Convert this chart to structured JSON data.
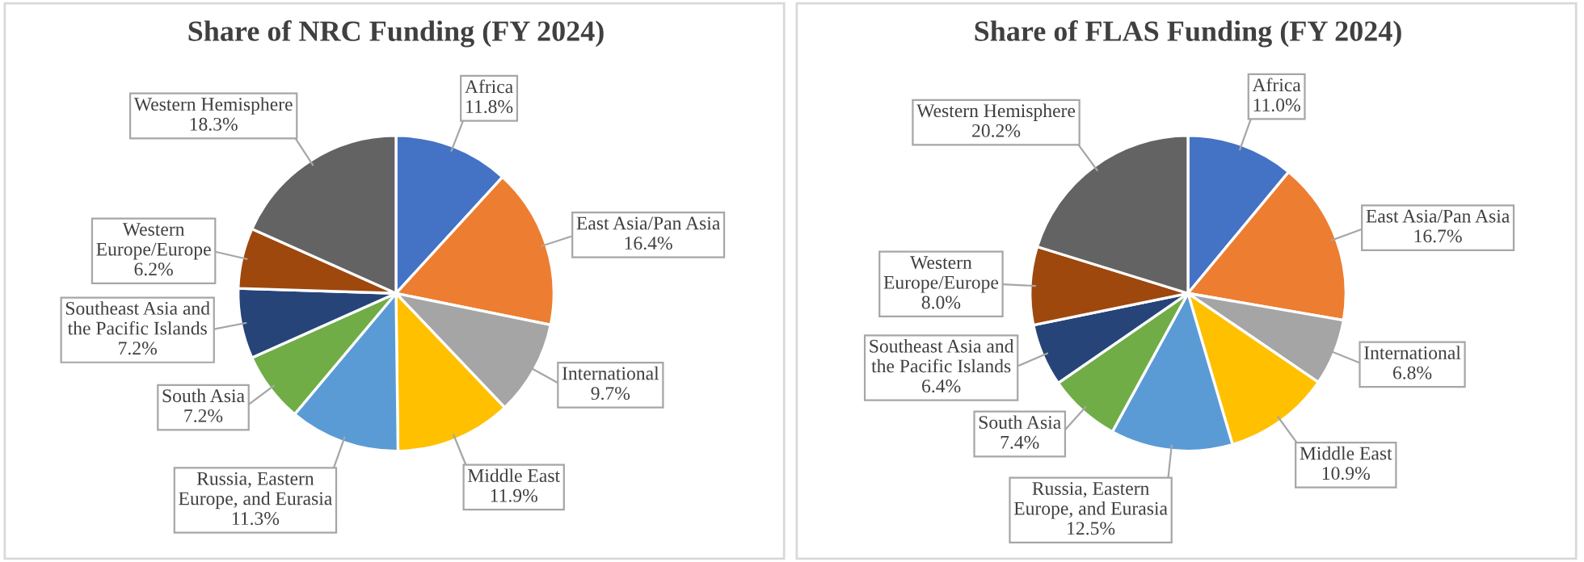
{
  "chart_data": [
    {
      "type": "pie",
      "title": "Share of NRC Funding (FY 2024)",
      "categories": [
        "Africa",
        "East Asia/Pan Asia",
        "International",
        "Middle East",
        "Russia, Eastern Europe, and Eurasia",
        "South Asia",
        "Southeast Asia and the Pacific Islands",
        "Western Europe/Europe",
        "Western Hemisphere"
      ],
      "values": [
        11.8,
        16.4,
        9.7,
        11.9,
        11.3,
        7.2,
        7.2,
        6.2,
        18.3
      ],
      "value_labels": [
        "11.8%",
        "16.4%",
        "9.7%",
        "11.9%",
        "11.3%",
        "7.2%",
        "7.2%",
        "6.2%",
        "18.3%"
      ],
      "colors": [
        "#4472c4",
        "#ed7d31",
        "#a5a5a5",
        "#ffc000",
        "#5b9bd5",
        "#70ad47",
        "#264478",
        "#9e480e",
        "#636363"
      ]
    },
    {
      "type": "pie",
      "title": "Share of FLAS Funding (FY 2024)",
      "categories": [
        "Africa",
        "East Asia/Pan Asia",
        "International",
        "Middle East",
        "Russia, Eastern Europe, and Eurasia",
        "South Asia",
        "Southeast Asia and the Pacific Islands",
        "Western Europe/Europe",
        "Western Hemisphere"
      ],
      "values": [
        11.0,
        16.7,
        6.8,
        10.9,
        12.5,
        7.4,
        6.4,
        8.0,
        20.2
      ],
      "value_labels": [
        "11.0%",
        "16.7%",
        "6.8%",
        "10.9%",
        "12.5%",
        "7.4%",
        "6.4%",
        "8.0%",
        "20.2%"
      ],
      "colors": [
        "#4472c4",
        "#ed7d31",
        "#a5a5a5",
        "#ffc000",
        "#5b9bd5",
        "#70ad47",
        "#264478",
        "#9e480e",
        "#636363"
      ]
    }
  ]
}
